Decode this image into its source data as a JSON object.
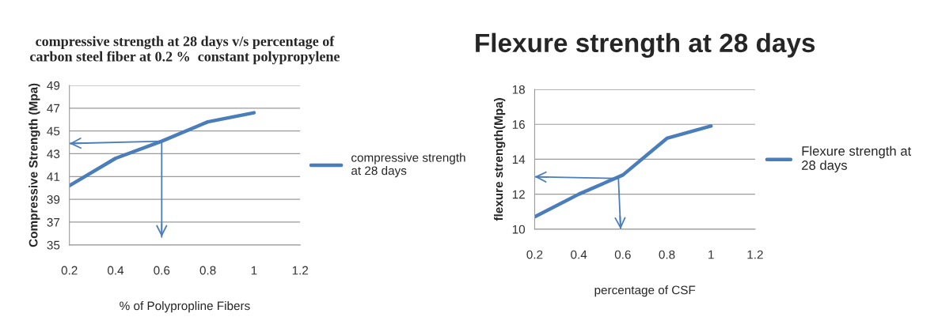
{
  "chart_data": [
    {
      "type": "line",
      "title": "compressive strength at 28 days v/s percentage of\ncarbon steel fiber at 0.2 %  constant polypropylene",
      "xlabel": "% of Polypropline Fibers",
      "ylabel": "Compressive Strength (Mpa)",
      "x": [
        0.2,
        0.4,
        0.6,
        0.8,
        1.0
      ],
      "series": [
        {
          "name": "compressive strength\nat 28 days",
          "color": "#4a7ebb",
          "values": [
            40.2,
            42.6,
            44.1,
            45.8,
            46.6
          ]
        },
        {
          "type": "line",
          "color": "#4a7ebb",
          "x": [
            0.6,
            0.2
          ],
          "values": [
            44.1,
            43.9
          ]
        },
        {
          "type": "line",
          "color": "#4a7ebb",
          "x": [
            0.6,
            0.6
          ],
          "values": [
            44.1,
            35.7
          ]
        }
      ],
      "xlim": [
        0.2,
        1.2
      ],
      "xticks": [
        0.2,
        0.4,
        0.6,
        0.8,
        1,
        1.2
      ],
      "ylim": [
        35,
        49
      ],
      "yticks": [
        35,
        37,
        39,
        41,
        43,
        45,
        47,
        49
      ],
      "grid": "y",
      "legend": "right",
      "marker": "none",
      "line_style": "solid"
    },
    {
      "type": "line",
      "title": "Flexure strength at 28 days",
      "xlabel": "percentage of CSF",
      "ylabel": "flexure strength(Mpa)",
      "x": [
        0.2,
        0.4,
        0.6,
        0.8,
        1.0
      ],
      "series": [
        {
          "name": "Flexure strength at\n28 days",
          "color": "#4a7ebb",
          "values": [
            10.7,
            12.0,
            13.1,
            15.2,
            15.9
          ]
        },
        {
          "type": "line",
          "color": "#4a7ebb",
          "x": [
            0.58,
            0.2
          ],
          "values": [
            12.9,
            13.0
          ]
        },
        {
          "type": "line",
          "color": "#4a7ebb",
          "x": [
            0.58,
            0.59
          ],
          "values": [
            12.9,
            10.0
          ]
        }
      ],
      "xlim": [
        0.2,
        1.2
      ],
      "xticks": [
        0.2,
        0.4,
        0.6,
        0.8,
        1,
        1.2
      ],
      "ylim": [
        10,
        18
      ],
      "yticks": [
        10,
        12,
        14,
        16,
        18
      ],
      "grid": "y",
      "legend": "right",
      "marker": "none",
      "line_style": "solid"
    }
  ]
}
